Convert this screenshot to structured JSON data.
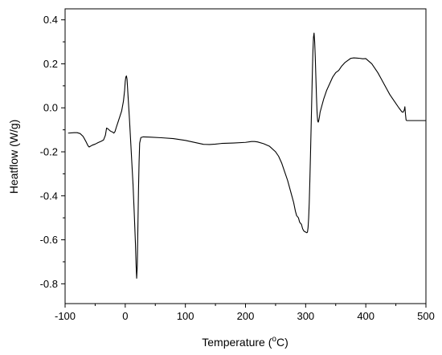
{
  "chart_data": {
    "type": "line",
    "xlabel": "Temperature (°C)",
    "xlabel_parts": {
      "pre": "Temperature (",
      "sup": "o",
      "post": "C)"
    },
    "ylabel": "Heatflow (W/g)",
    "xlim": [
      -100,
      500
    ],
    "ylim": [
      -0.89,
      0.45
    ],
    "x_ticks": [
      -100,
      0,
      100,
      200,
      300,
      400,
      500
    ],
    "x_tick_labels": [
      "-100",
      "0",
      "100",
      "200",
      "300",
      "400",
      "500"
    ],
    "y_ticks": [
      -0.8,
      -0.6,
      -0.4,
      -0.2,
      0.0,
      0.2,
      0.4
    ],
    "y_tick_labels": [
      "-0.8",
      "-0.6",
      "-0.4",
      "-0.2",
      "0.0",
      "0.2",
      "0.4"
    ],
    "grid": false,
    "line_color": "#000000",
    "series": [
      {
        "x": [
          -95,
          -85,
          -80,
          -75,
          -70,
          -65,
          -62,
          -60,
          -55,
          -50,
          -45,
          -40,
          -36,
          -33,
          -31,
          -29,
          -27,
          -25,
          -23,
          -21,
          -19,
          -17,
          -15,
          -12,
          -9,
          -6,
          -3,
          -1,
          0,
          1,
          2,
          3,
          5,
          7,
          9,
          11,
          13,
          15,
          17,
          18,
          19,
          20,
          21,
          22,
          23,
          24,
          26,
          30,
          40,
          60,
          80,
          100,
          120,
          130,
          140,
          150,
          160,
          180,
          200,
          210,
          215,
          220,
          230,
          240,
          250,
          255,
          260,
          265,
          270,
          275,
          280,
          283,
          285,
          288,
          290,
          293,
          295,
          297,
          300,
          302,
          303,
          304,
          305,
          306,
          307,
          308,
          309,
          310,
          311,
          312,
          313,
          314,
          315,
          316,
          317,
          318,
          319,
          320,
          321,
          322,
          323,
          324,
          326,
          328,
          330,
          335,
          340,
          345,
          350,
          355,
          360,
          365,
          370,
          375,
          380,
          385,
          390,
          395,
          400,
          405,
          410,
          415,
          420,
          425,
          430,
          435,
          440,
          445,
          450,
          455,
          460,
          462,
          464,
          465,
          466,
          467,
          468,
          500
        ],
        "y": [
          -0.115,
          -0.113,
          -0.113,
          -0.117,
          -0.13,
          -0.155,
          -0.172,
          -0.178,
          -0.17,
          -0.165,
          -0.158,
          -0.152,
          -0.146,
          -0.125,
          -0.092,
          -0.095,
          -0.1,
          -0.105,
          -0.108,
          -0.11,
          -0.115,
          -0.108,
          -0.09,
          -0.065,
          -0.04,
          -0.015,
          0.03,
          0.08,
          0.12,
          0.14,
          0.145,
          0.13,
          0.04,
          -0.05,
          -0.15,
          -0.25,
          -0.35,
          -0.48,
          -0.62,
          -0.71,
          -0.775,
          -0.72,
          -0.55,
          -0.38,
          -0.25,
          -0.16,
          -0.135,
          -0.132,
          -0.133,
          -0.136,
          -0.14,
          -0.148,
          -0.16,
          -0.166,
          -0.167,
          -0.165,
          -0.162,
          -0.16,
          -0.157,
          -0.153,
          -0.153,
          -0.155,
          -0.163,
          -0.175,
          -0.2,
          -0.22,
          -0.25,
          -0.29,
          -0.33,
          -0.38,
          -0.43,
          -0.47,
          -0.49,
          -0.5,
          -0.52,
          -0.53,
          -0.55,
          -0.56,
          -0.565,
          -0.568,
          -0.565,
          -0.545,
          -0.5,
          -0.43,
          -0.33,
          -0.22,
          -0.1,
          0.02,
          0.14,
          0.25,
          0.32,
          0.34,
          0.3,
          0.23,
          0.14,
          0.05,
          -0.02,
          -0.06,
          -0.065,
          -0.055,
          -0.04,
          -0.02,
          0.0,
          0.02,
          0.04,
          0.08,
          0.11,
          0.14,
          0.16,
          0.17,
          0.19,
          0.205,
          0.215,
          0.225,
          0.227,
          0.226,
          0.225,
          0.223,
          0.224,
          0.212,
          0.2,
          0.18,
          0.16,
          0.135,
          0.11,
          0.085,
          0.06,
          0.04,
          0.02,
          0.0,
          -0.018,
          -0.02,
          -0.01,
          0.005,
          -0.03,
          -0.055,
          -0.058,
          -0.058
        ]
      }
    ]
  }
}
